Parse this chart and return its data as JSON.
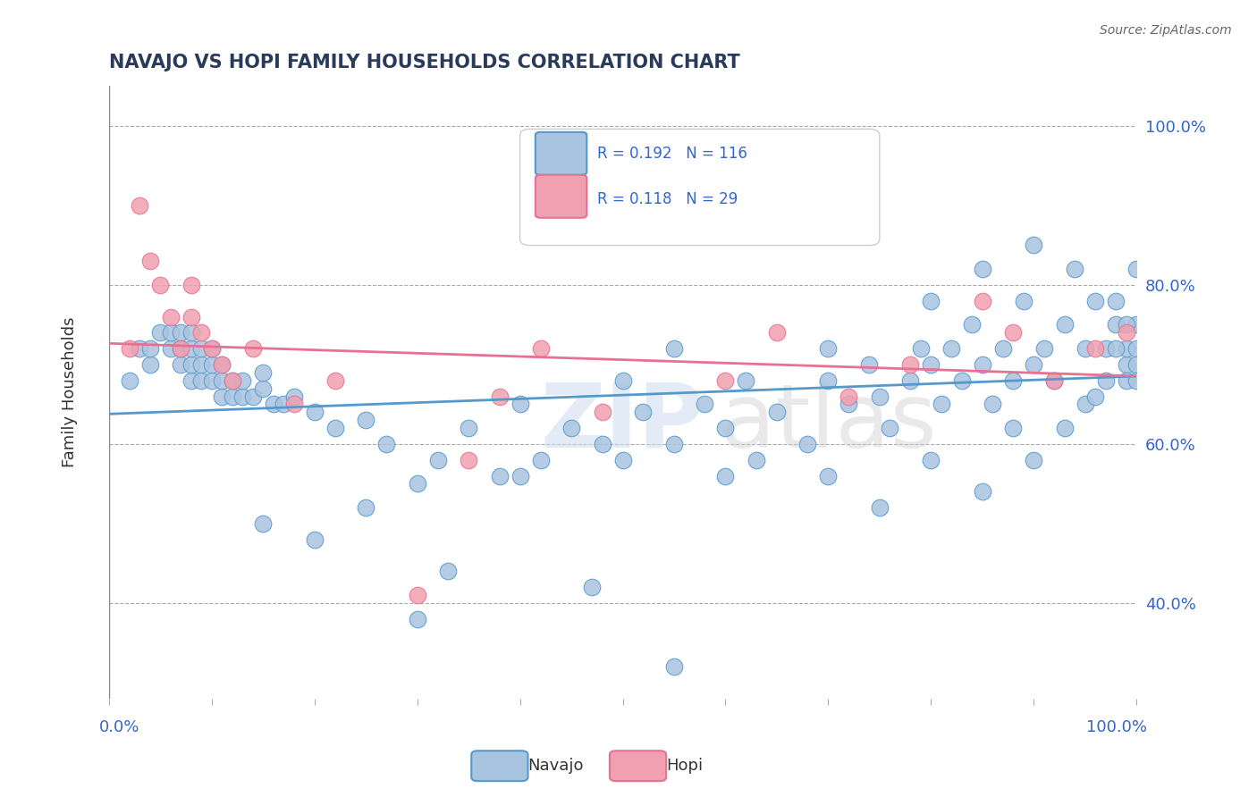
{
  "title": "NAVAJO VS HOPI FAMILY HOUSEHOLDS CORRELATION CHART",
  "source": "Source: ZipAtlas.com",
  "ylabel": "Family Households",
  "navajo_R": 0.192,
  "navajo_N": 116,
  "hopi_R": 0.118,
  "hopi_N": 29,
  "navajo_color": "#a8c4e0",
  "hopi_color": "#f0a0b0",
  "navajo_line_color": "#5599cc",
  "hopi_line_color": "#e87090",
  "title_color": "#2a3a5a",
  "axis_label_color": "#3366cc",
  "navajo_x": [
    0.02,
    0.03,
    0.04,
    0.04,
    0.05,
    0.06,
    0.06,
    0.07,
    0.07,
    0.07,
    0.08,
    0.08,
    0.08,
    0.08,
    0.09,
    0.09,
    0.09,
    0.1,
    0.1,
    0.1,
    0.11,
    0.11,
    0.11,
    0.12,
    0.12,
    0.13,
    0.13,
    0.14,
    0.15,
    0.15,
    0.16,
    0.17,
    0.18,
    0.2,
    0.22,
    0.25,
    0.27,
    0.3,
    0.32,
    0.35,
    0.38,
    0.4,
    0.42,
    0.45,
    0.48,
    0.5,
    0.5,
    0.52,
    0.55,
    0.55,
    0.58,
    0.6,
    0.62,
    0.65,
    0.68,
    0.7,
    0.7,
    0.72,
    0.74,
    0.75,
    0.76,
    0.78,
    0.79,
    0.8,
    0.8,
    0.81,
    0.82,
    0.83,
    0.84,
    0.85,
    0.85,
    0.86,
    0.87,
    0.88,
    0.89,
    0.9,
    0.9,
    0.91,
    0.92,
    0.93,
    0.94,
    0.95,
    0.95,
    0.96,
    0.97,
    0.97,
    0.98,
    0.98,
    0.99,
    0.99,
    0.99,
    1.0,
    1.0,
    1.0,
    1.0,
    1.0,
    0.3,
    0.47,
    0.55,
    0.63,
    0.15,
    0.2,
    0.25,
    0.33,
    0.4,
    0.6,
    0.7,
    0.75,
    0.8,
    0.85,
    0.88,
    0.9,
    0.93,
    0.96,
    0.98,
    0.99
  ],
  "navajo_y": [
    0.68,
    0.72,
    0.7,
    0.72,
    0.74,
    0.72,
    0.74,
    0.7,
    0.72,
    0.74,
    0.68,
    0.7,
    0.72,
    0.74,
    0.68,
    0.7,
    0.72,
    0.68,
    0.7,
    0.72,
    0.66,
    0.68,
    0.7,
    0.66,
    0.68,
    0.66,
    0.68,
    0.66,
    0.67,
    0.69,
    0.65,
    0.65,
    0.66,
    0.64,
    0.62,
    0.63,
    0.6,
    0.55,
    0.58,
    0.62,
    0.56,
    0.65,
    0.58,
    0.62,
    0.6,
    0.58,
    0.68,
    0.64,
    0.6,
    0.72,
    0.65,
    0.62,
    0.68,
    0.64,
    0.6,
    0.68,
    0.72,
    0.65,
    0.7,
    0.66,
    0.62,
    0.68,
    0.72,
    0.78,
    0.7,
    0.65,
    0.72,
    0.68,
    0.75,
    0.82,
    0.7,
    0.65,
    0.72,
    0.68,
    0.78,
    0.85,
    0.7,
    0.72,
    0.68,
    0.75,
    0.82,
    0.72,
    0.65,
    0.78,
    0.68,
    0.72,
    0.75,
    0.78,
    0.7,
    0.72,
    0.68,
    0.75,
    0.72,
    0.7,
    0.82,
    0.68,
    0.38,
    0.42,
    0.32,
    0.58,
    0.5,
    0.48,
    0.52,
    0.44,
    0.56,
    0.56,
    0.56,
    0.52,
    0.58,
    0.54,
    0.62,
    0.58,
    0.62,
    0.66,
    0.72,
    0.75
  ],
  "hopi_x": [
    0.02,
    0.03,
    0.04,
    0.05,
    0.06,
    0.07,
    0.08,
    0.08,
    0.09,
    0.1,
    0.11,
    0.12,
    0.14,
    0.18,
    0.22,
    0.3,
    0.35,
    0.38,
    0.42,
    0.48,
    0.6,
    0.65,
    0.72,
    0.78,
    0.85,
    0.88,
    0.92,
    0.96,
    0.99
  ],
  "hopi_y": [
    0.72,
    0.9,
    0.83,
    0.8,
    0.76,
    0.72,
    0.76,
    0.8,
    0.74,
    0.72,
    0.7,
    0.68,
    0.72,
    0.65,
    0.68,
    0.41,
    0.58,
    0.66,
    0.72,
    0.64,
    0.68,
    0.74,
    0.66,
    0.7,
    0.78,
    0.74,
    0.68,
    0.72,
    0.74
  ],
  "yticks": [
    0.4,
    0.6,
    0.8,
    1.0
  ],
  "ytick_labels": [
    "40.0%",
    "60.0%",
    "80.0%",
    "100.0%"
  ],
  "ymin": 0.28,
  "ymax": 1.05
}
